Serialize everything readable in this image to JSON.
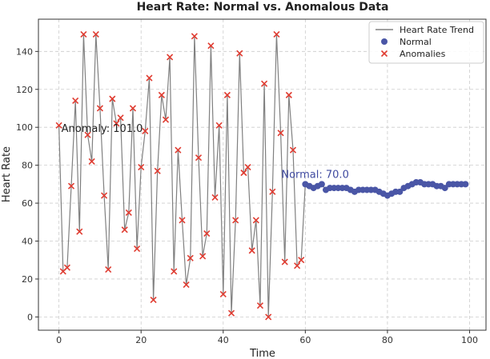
{
  "chart_data": {
    "type": "line",
    "title": "Heart Rate: Normal vs. Anomalous Data",
    "xlabel": "Time",
    "ylabel": "Heart Rate",
    "xlim": [
      -5,
      104
    ],
    "ylim": [
      -7,
      157
    ],
    "xticks": [
      0,
      20,
      40,
      60,
      80,
      100
    ],
    "yticks": [
      0,
      20,
      40,
      60,
      80,
      100,
      120,
      140
    ],
    "grid": true,
    "legend_position": "top-right",
    "legend": {
      "trend": "Heart Rate Trend",
      "normal": "Normal",
      "anomalies": "Anomalies"
    },
    "colors": {
      "trend": "#808080",
      "normal": "#4a56a6",
      "anomalies": "#e03c31"
    },
    "annotations": [
      {
        "text": "Anomaly: 101.0",
        "x": 0,
        "y": 101,
        "color": "#222222"
      },
      {
        "text": "Normal: 70.0",
        "x": 60,
        "y": 70,
        "color": "#3f4aa0"
      }
    ],
    "series": [
      {
        "name": "Heart Rate Trend",
        "x": [
          0,
          1,
          2,
          3,
          4,
          5,
          6,
          7,
          8,
          9,
          10,
          11,
          12,
          13,
          14,
          15,
          16,
          17,
          18,
          19,
          20,
          21,
          22,
          23,
          24,
          25,
          26,
          27,
          28,
          29,
          30,
          31,
          32,
          33,
          34,
          35,
          36,
          37,
          38,
          39,
          40,
          41,
          42,
          43,
          44,
          45,
          46,
          47,
          48,
          49,
          50,
          51,
          52,
          53,
          54,
          55,
          56,
          57,
          58,
          59,
          60,
          61,
          62,
          63,
          64,
          65,
          66,
          67,
          68,
          69,
          70,
          71,
          72,
          73,
          74,
          75,
          76,
          77,
          78,
          79,
          80,
          81,
          82,
          83,
          84,
          85,
          86,
          87,
          88,
          89,
          90,
          91,
          92,
          93,
          94,
          95,
          96,
          97,
          98,
          99
        ],
        "y": [
          101,
          24,
          26,
          69,
          114,
          45,
          149,
          96,
          82,
          149,
          110,
          64,
          25,
          115,
          102,
          105,
          46,
          55,
          110,
          36,
          79,
          98,
          126,
          9,
          77,
          117,
          104,
          137,
          24,
          88,
          51,
          17,
          31,
          148,
          84,
          32,
          44,
          143,
          63,
          101,
          12,
          117,
          2,
          51,
          139,
          76,
          79,
          35,
          51,
          6,
          123,
          0,
          66,
          149,
          97,
          29,
          117,
          88,
          27,
          30,
          70,
          69,
          68,
          69,
          70,
          67,
          68,
          68,
          68,
          68,
          68,
          67,
          66,
          67,
          67,
          67,
          67,
          67,
          66,
          65,
          64,
          65,
          66,
          66,
          68,
          69,
          70,
          71,
          71,
          70,
          70,
          70,
          69,
          69,
          68,
          70,
          70,
          70,
          70,
          70
        ]
      }
    ]
  }
}
